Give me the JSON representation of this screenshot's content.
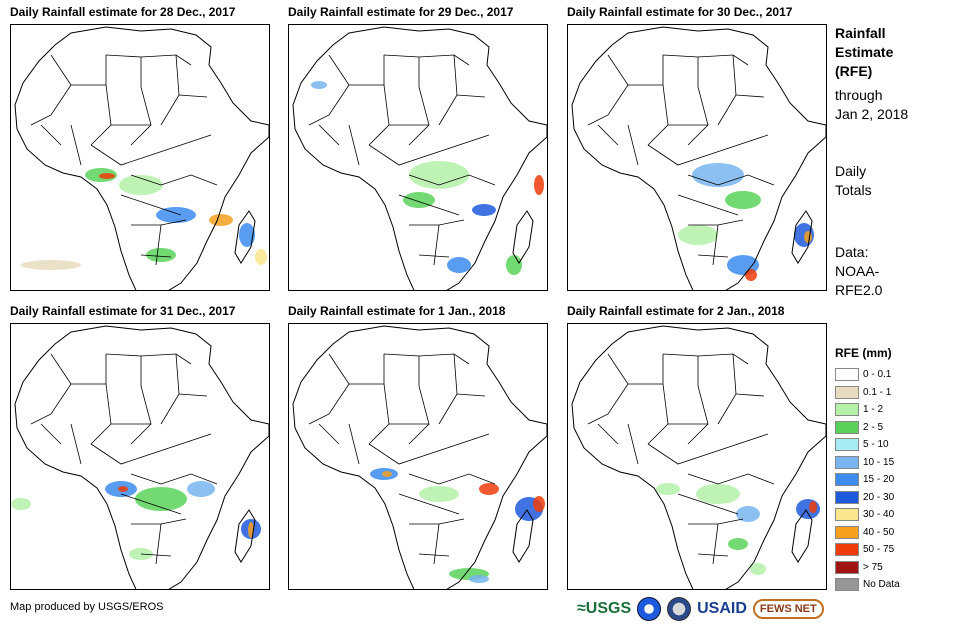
{
  "panels": [
    {
      "title": "Daily Rainfall estimate for 28 Dec., 2017"
    },
    {
      "title": "Daily Rainfall estimate for 29 Dec., 2017"
    },
    {
      "title": "Daily Rainfall estimate for 30 Dec., 2017"
    },
    {
      "title": "Daily Rainfall estimate for 31 Dec., 2017"
    },
    {
      "title": "Daily Rainfall estimate for 1 Jan., 2018"
    },
    {
      "title": "Daily Rainfall estimate for 2 Jan., 2018"
    }
  ],
  "side": {
    "heading": [
      "Rainfall",
      "Estimate",
      "(RFE)"
    ],
    "through": [
      "through",
      "Jan 2, 2018"
    ],
    "totals": [
      "Daily",
      "Totals"
    ],
    "data": [
      "Data:",
      "NOAA-",
      "RFE2.0"
    ]
  },
  "legend": {
    "title": "RFE (mm)",
    "items": [
      {
        "label": "0 - 0.1",
        "color": "#ffffff"
      },
      {
        "label": "0.1 - 1",
        "color": "#e8dcc0"
      },
      {
        "label": "1 - 2",
        "color": "#b4f0a8"
      },
      {
        "label": "2 - 5",
        "color": "#5ad25a"
      },
      {
        "label": "5 - 10",
        "color": "#a8ecf4"
      },
      {
        "label": "10 - 15",
        "color": "#78b4f0"
      },
      {
        "label": "15 - 20",
        "color": "#3c8cf0"
      },
      {
        "label": "20 - 30",
        "color": "#1e5adc"
      },
      {
        "label": "30 - 40",
        "color": "#fae68c"
      },
      {
        "label": "40 - 50",
        "color": "#f5a01e"
      },
      {
        "label": "50 - 75",
        "color": "#f03c0a"
      },
      {
        "label": "> 75",
        "color": "#a01414"
      },
      {
        "label": "No Data",
        "color": "#969696"
      }
    ]
  },
  "footer": {
    "credit": "Map produced by USGS/EROS"
  },
  "logos": {
    "usgs": "≈USGS",
    "usaid": "USAID",
    "fews": "FEWS NET"
  }
}
